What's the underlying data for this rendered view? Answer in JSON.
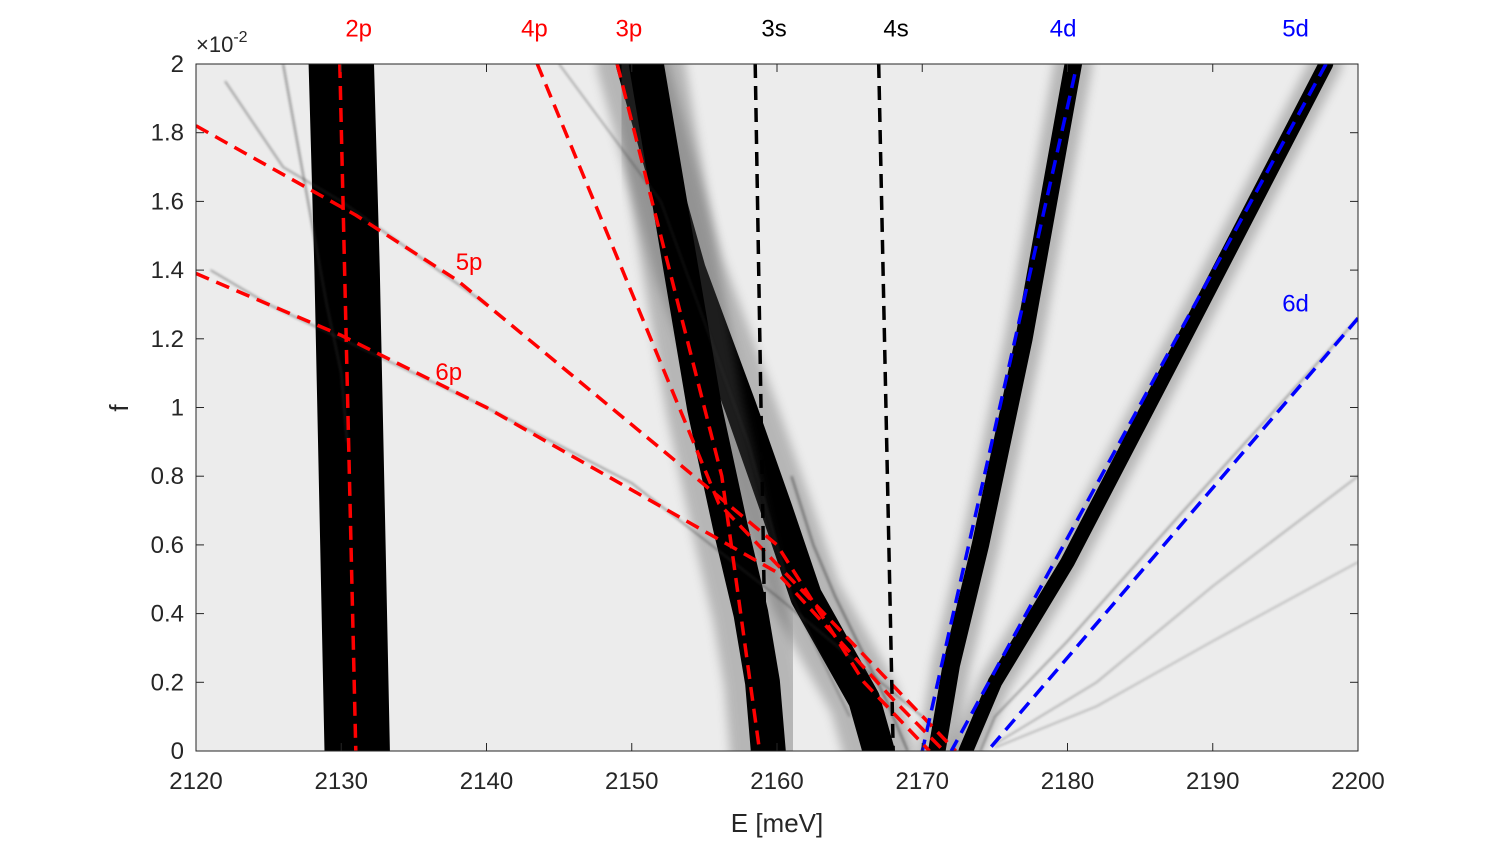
{
  "chart_data": {
    "type": "heatmap",
    "title": "",
    "xlabel": "E [meV]",
    "ylabel": "f",
    "y_scale_label": "×10",
    "y_scale_exponent": "-2",
    "xlim": [
      2120,
      2200
    ],
    "ylim": [
      0,
      2
    ],
    "x_ticks": [
      "2120",
      "2130",
      "2140",
      "2150",
      "2160",
      "2170",
      "2180",
      "2190",
      "2200"
    ],
    "y_ticks": [
      "0",
      "0.2",
      "0.4",
      "0.6",
      "0.8",
      "1",
      "1.2",
      "1.4",
      "1.6",
      "1.8",
      "2"
    ],
    "colormap": "grayscale (black = high intensity)",
    "colors": {
      "p_lines": "#ff0000",
      "s_lines": "#000000",
      "d_lines": "#0000ff"
    },
    "dashed_lines": [
      {
        "name": "2p",
        "color": "p",
        "points": [
          [
            2129.9,
            2.0
          ],
          [
            2131.0,
            0.0
          ]
        ]
      },
      {
        "name": "4p",
        "color": "p",
        "points": [
          [
            2143.5,
            2.0
          ],
          [
            2156.0,
            0.72
          ],
          [
            2172.3,
            0.0
          ]
        ]
      },
      {
        "name": "3p",
        "color": "p",
        "points": [
          [
            2149.0,
            2.0
          ],
          [
            2156.2,
            0.8
          ],
          [
            2158.8,
            0.0
          ]
        ]
      },
      {
        "name": "3s",
        "color": "s",
        "points": [
          [
            2158.5,
            2.0
          ],
          [
            2159.3,
            0.0
          ]
        ]
      },
      {
        "name": "4s",
        "color": "s",
        "points": [
          [
            2167.0,
            2.0
          ],
          [
            2168.0,
            0.0
          ]
        ]
      },
      {
        "name": "4d",
        "color": "d",
        "points": [
          [
            2180.5,
            1.97
          ],
          [
            2170.0,
            0.0
          ]
        ]
      },
      {
        "name": "5d",
        "color": "d",
        "points": [
          [
            2197.8,
            2.0
          ],
          [
            2172.0,
            0.0
          ]
        ]
      },
      {
        "name": "6d",
        "color": "d",
        "points": [
          [
            2200.0,
            1.26
          ],
          [
            2174.5,
            0.0
          ]
        ]
      },
      {
        "name": "5p",
        "color": "p",
        "points": [
          [
            2120.0,
            1.82
          ],
          [
            2131.0,
            1.56
          ],
          [
            2138.0,
            1.37
          ],
          [
            2160.0,
            0.6
          ],
          [
            2166.0,
            0.2
          ],
          [
            2170.5,
            0.0
          ]
        ]
      },
      {
        "name": "6p",
        "color": "p",
        "points": [
          [
            2120.0,
            1.39
          ],
          [
            2130.0,
            1.21
          ],
          [
            2140.0,
            1.0
          ],
          [
            2160.0,
            0.52
          ],
          [
            2168.0,
            0.15
          ],
          [
            2171.5,
            0.0
          ]
        ]
      }
    ],
    "line_labels": [
      {
        "text": "2p",
        "color": "p",
        "x": 2131.2,
        "y": 2.08
      },
      {
        "text": "4p",
        "color": "p",
        "x": 2143.3,
        "y": 2.08
      },
      {
        "text": "3p",
        "color": "p",
        "x": 2149.8,
        "y": 2.08
      },
      {
        "text": "3s",
        "color": "s",
        "x": 2159.8,
        "y": 2.08
      },
      {
        "text": "4s",
        "color": "s",
        "x": 2168.2,
        "y": 2.08
      },
      {
        "text": "4d",
        "color": "d",
        "x": 2179.7,
        "y": 2.08
      },
      {
        "text": "5d",
        "color": "d",
        "x": 2195.7,
        "y": 2.08
      },
      {
        "text": "5p",
        "color": "p",
        "x": 2138.8,
        "y": 1.4
      },
      {
        "text": "6p",
        "color": "p",
        "x": 2137.4,
        "y": 1.08
      },
      {
        "text": "6d",
        "color": "d",
        "x": 2195.7,
        "y": 1.28
      }
    ],
    "dark_bands": [
      {
        "width": 4.5,
        "points": [
          [
            2130.0,
            2.0
          ],
          [
            2130.4,
            1.4
          ],
          [
            2130.8,
            0.6
          ],
          [
            2131.1,
            0.0
          ]
        ]
      },
      {
        "width": 2.2,
        "points": [
          [
            2150.0,
            2.0
          ],
          [
            2154.0,
            1.4
          ],
          [
            2157.5,
            1.0
          ],
          [
            2160.0,
            0.7
          ],
          [
            2162.0,
            0.45
          ],
          [
            2164.0,
            0.3
          ],
          [
            2166.0,
            0.15
          ],
          [
            2167.0,
            0.0
          ]
        ]
      },
      {
        "width": 2.4,
        "points": [
          [
            2151.0,
            2.0
          ],
          [
            2153.0,
            1.5
          ],
          [
            2155.0,
            1.0
          ],
          [
            2156.8,
            0.65
          ],
          [
            2158.2,
            0.4
          ],
          [
            2159.0,
            0.2
          ],
          [
            2159.4,
            0.0
          ]
        ]
      },
      {
        "width": 1.2,
        "points": [
          [
            2180.4,
            2.0
          ],
          [
            2177.0,
            1.2
          ],
          [
            2174.0,
            0.6
          ],
          [
            2172.0,
            0.25
          ],
          [
            2171.0,
            0.0
          ]
        ]
      },
      {
        "width": 1.0,
        "points": [
          [
            2197.8,
            2.0
          ],
          [
            2188.0,
            1.2
          ],
          [
            2180.0,
            0.55
          ],
          [
            2175.0,
            0.2
          ],
          [
            2173.0,
            0.0
          ]
        ]
      }
    ],
    "faint_lines": [
      {
        "width": 0.6,
        "points": [
          [
            2126.0,
            2.0
          ],
          [
            2127.5,
            1.65
          ],
          [
            2129.0,
            1.3
          ],
          [
            2130.0,
            1.1
          ],
          [
            2130.4,
            0.9
          ]
        ]
      },
      {
        "width": 0.5,
        "points": [
          [
            2122.0,
            1.95
          ],
          [
            2126.0,
            1.7
          ],
          [
            2130.0,
            1.6
          ],
          [
            2135.0,
            1.45
          ],
          [
            2140.0,
            1.3
          ]
        ]
      },
      {
        "width": 0.5,
        "points": [
          [
            2121.0,
            1.4
          ],
          [
            2125.0,
            1.3
          ],
          [
            2130.0,
            1.2
          ],
          [
            2140.0,
            1.0
          ],
          [
            2150.0,
            0.78
          ],
          [
            2160.0,
            0.45
          ],
          [
            2170.0,
            0.1
          ]
        ]
      },
      {
        "width": 0.4,
        "points": [
          [
            2145.0,
            2.0
          ],
          [
            2152.0,
            1.6
          ],
          [
            2158.0,
            0.9
          ],
          [
            2161.0,
            0.45
          ],
          [
            2165.0,
            0.1
          ]
        ]
      },
      {
        "width": 0.7,
        "points": [
          [
            2161.0,
            0.8
          ],
          [
            2162.5,
            0.6
          ],
          [
            2164.0,
            0.45
          ],
          [
            2167.5,
            0.15
          ],
          [
            2169.0,
            0.0
          ]
        ]
      },
      {
        "width": 0.5,
        "points": [
          [
            2200.0,
            1.26
          ],
          [
            2188.0,
            0.7
          ],
          [
            2180.0,
            0.32
          ],
          [
            2175.0,
            0.1
          ],
          [
            2174.0,
            0.0
          ]
        ]
      },
      {
        "width": 0.35,
        "points": [
          [
            2200.0,
            0.8
          ],
          [
            2190.0,
            0.48
          ],
          [
            2182.0,
            0.2
          ],
          [
            2175.0,
            0.02
          ]
        ]
      },
      {
        "width": 0.3,
        "points": [
          [
            2200.0,
            0.55
          ],
          [
            2190.0,
            0.32
          ],
          [
            2182.0,
            0.13
          ],
          [
            2175.0,
            0.01
          ]
        ]
      }
    ]
  }
}
